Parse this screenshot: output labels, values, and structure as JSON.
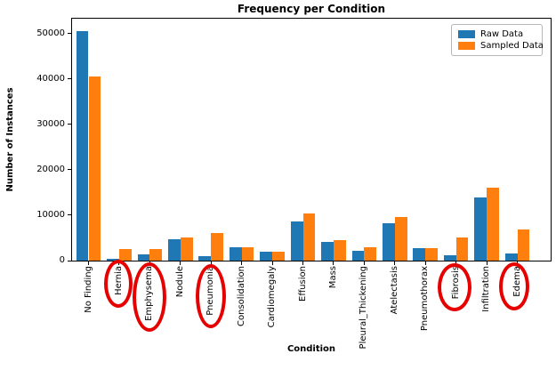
{
  "chart_data": {
    "type": "bar",
    "title": "Frequency per Condition",
    "xlabel": "Condition",
    "ylabel": "Number of Instances",
    "categories": [
      "No Finding",
      "Hernia",
      "Emphysema",
      "Nodule",
      "Pneumonia",
      "Consolidation",
      "Cardiomegaly",
      "Effusion",
      "Mass",
      "Pleural_Thickening",
      "Atelectasis",
      "Pneumothorax",
      "Fibrosis",
      "Infiltration",
      "Edema"
    ],
    "series": [
      {
        "name": "Raw Data",
        "color": "#1f77b4",
        "values": [
          50600,
          400,
          1400,
          4800,
          1000,
          2900,
          1900,
          8600,
          4200,
          2200,
          8300,
          2700,
          1200,
          13900,
          1500
        ]
      },
      {
        "name": "Sampled Data",
        "color": "#ff7f0e",
        "values": [
          40500,
          2500,
          2500,
          5000,
          6000,
          2900,
          1900,
          10400,
          4600,
          2900,
          9700,
          2700,
          5000,
          16000,
          6800
        ]
      }
    ],
    "yticks": [
      0,
      10000,
      20000,
      30000,
      40000,
      50000
    ],
    "ylim": [
      0,
      53300
    ],
    "grid": false,
    "legend_position": "upper right",
    "circled_categories": [
      "Hernia",
      "Emphysema",
      "Pneumonia",
      "Fibrosis",
      "Edema"
    ],
    "annotation_color": "#e60000"
  }
}
